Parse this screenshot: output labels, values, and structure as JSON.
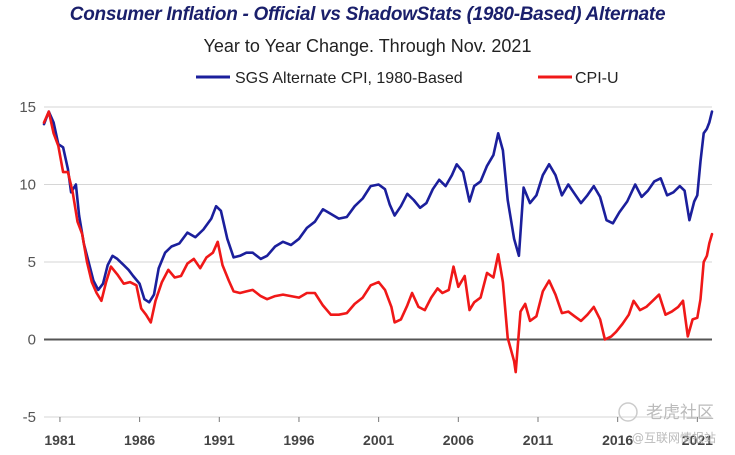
{
  "chart_data": {
    "type": "line",
    "title": "Consumer Inflation - Official vs ShadowStats (1980-Based) Alternate",
    "subtitle": "Year to Year Change. Through Nov. 2021",
    "xlabel": "",
    "ylabel": "",
    "x_ticks": [
      "1981",
      "1986",
      "1991",
      "1996",
      "2001",
      "2006",
      "2011",
      "2016",
      "2021"
    ],
    "y_ticks": [
      "-5",
      "0",
      "5",
      "10",
      "15"
    ],
    "xlim": [
      1980.0,
      2021.92
    ],
    "ylim": [
      -5,
      15
    ],
    "grid": true,
    "legend_position": "top-center",
    "series": [
      {
        "name": "SGS Alternate CPI, 1980-Based",
        "color": "#1b1f9c",
        "points": [
          [
            1980.0,
            13.9
          ],
          [
            1980.3,
            14.7
          ],
          [
            1980.6,
            14.0
          ],
          [
            1980.9,
            12.6
          ],
          [
            1981.2,
            12.4
          ],
          [
            1981.5,
            11.0
          ],
          [
            1981.7,
            9.5
          ],
          [
            1982.0,
            10.0
          ],
          [
            1982.2,
            8.0
          ],
          [
            1982.5,
            6.2
          ],
          [
            1982.8,
            5.0
          ],
          [
            1983.1,
            3.8
          ],
          [
            1983.4,
            3.2
          ],
          [
            1983.7,
            3.6
          ],
          [
            1984.0,
            4.8
          ],
          [
            1984.3,
            5.4
          ],
          [
            1984.6,
            5.2
          ],
          [
            1985.0,
            4.8
          ],
          [
            1985.3,
            4.5
          ],
          [
            1985.6,
            4.1
          ],
          [
            1986.0,
            3.6
          ],
          [
            1986.3,
            2.6
          ],
          [
            1986.6,
            2.4
          ],
          [
            1986.9,
            2.9
          ],
          [
            1987.2,
            4.6
          ],
          [
            1987.6,
            5.6
          ],
          [
            1988.0,
            6.0
          ],
          [
            1988.5,
            6.2
          ],
          [
            1989.0,
            6.9
          ],
          [
            1989.5,
            6.6
          ],
          [
            1990.0,
            7.1
          ],
          [
            1990.5,
            7.8
          ],
          [
            1990.8,
            8.6
          ],
          [
            1991.1,
            8.3
          ],
          [
            1991.5,
            6.5
          ],
          [
            1991.9,
            5.3
          ],
          [
            1992.3,
            5.4
          ],
          [
            1992.7,
            5.6
          ],
          [
            1993.1,
            5.6
          ],
          [
            1993.6,
            5.2
          ],
          [
            1994.0,
            5.4
          ],
          [
            1994.5,
            6.0
          ],
          [
            1995.0,
            6.3
          ],
          [
            1995.5,
            6.1
          ],
          [
            1996.0,
            6.5
          ],
          [
            1996.5,
            7.2
          ],
          [
            1997.0,
            7.6
          ],
          [
            1997.5,
            8.4
          ],
          [
            1998.0,
            8.1
          ],
          [
            1998.5,
            7.8
          ],
          [
            1999.0,
            7.9
          ],
          [
            1999.5,
            8.6
          ],
          [
            2000.0,
            9.1
          ],
          [
            2000.5,
            9.9
          ],
          [
            2001.0,
            10.0
          ],
          [
            2001.4,
            9.7
          ],
          [
            2001.7,
            8.7
          ],
          [
            2002.0,
            8.0
          ],
          [
            2002.4,
            8.6
          ],
          [
            2002.8,
            9.4
          ],
          [
            2003.2,
            9.0
          ],
          [
            2003.6,
            8.5
          ],
          [
            2004.0,
            8.8
          ],
          [
            2004.4,
            9.7
          ],
          [
            2004.8,
            10.3
          ],
          [
            2005.2,
            9.9
          ],
          [
            2005.6,
            10.6
          ],
          [
            2005.9,
            11.3
          ],
          [
            2006.3,
            10.8
          ],
          [
            2006.7,
            8.9
          ],
          [
            2007.0,
            9.9
          ],
          [
            2007.4,
            10.2
          ],
          [
            2007.8,
            11.2
          ],
          [
            2008.2,
            11.9
          ],
          [
            2008.5,
            13.3
          ],
          [
            2008.8,
            12.2
          ],
          [
            2009.1,
            9.0
          ],
          [
            2009.5,
            6.5
          ],
          [
            2009.8,
            5.4
          ],
          [
            2010.1,
            9.8
          ],
          [
            2010.5,
            8.8
          ],
          [
            2010.9,
            9.3
          ],
          [
            2011.3,
            10.6
          ],
          [
            2011.7,
            11.3
          ],
          [
            2012.1,
            10.6
          ],
          [
            2012.5,
            9.3
          ],
          [
            2012.9,
            10.0
          ],
          [
            2013.3,
            9.4
          ],
          [
            2013.7,
            8.8
          ],
          [
            2014.1,
            9.3
          ],
          [
            2014.5,
            9.9
          ],
          [
            2014.9,
            9.2
          ],
          [
            2015.3,
            7.7
          ],
          [
            2015.7,
            7.5
          ],
          [
            2016.1,
            8.2
          ],
          [
            2016.6,
            8.9
          ],
          [
            2017.1,
            10.0
          ],
          [
            2017.5,
            9.2
          ],
          [
            2017.9,
            9.6
          ],
          [
            2018.3,
            10.2
          ],
          [
            2018.7,
            10.4
          ],
          [
            2019.1,
            9.3
          ],
          [
            2019.5,
            9.5
          ],
          [
            2019.9,
            9.9
          ],
          [
            2020.2,
            9.6
          ],
          [
            2020.5,
            7.7
          ],
          [
            2020.8,
            8.9
          ],
          [
            2021.0,
            9.3
          ],
          [
            2021.2,
            11.5
          ],
          [
            2021.4,
            13.3
          ],
          [
            2021.6,
            13.6
          ],
          [
            2021.75,
            14.0
          ],
          [
            2021.92,
            14.7
          ]
        ]
      },
      {
        "name": "CPI-U",
        "color": "#f01818",
        "points": [
          [
            1980.0,
            14.0
          ],
          [
            1980.3,
            14.7
          ],
          [
            1980.6,
            13.3
          ],
          [
            1980.9,
            12.5
          ],
          [
            1981.2,
            10.8
          ],
          [
            1981.5,
            10.8
          ],
          [
            1981.8,
            9.5
          ],
          [
            1982.1,
            7.6
          ],
          [
            1982.4,
            6.8
          ],
          [
            1982.7,
            5.0
          ],
          [
            1983.0,
            3.7
          ],
          [
            1983.3,
            3.0
          ],
          [
            1983.6,
            2.5
          ],
          [
            1983.9,
            3.7
          ],
          [
            1984.2,
            4.7
          ],
          [
            1984.6,
            4.2
          ],
          [
            1985.0,
            3.6
          ],
          [
            1985.4,
            3.7
          ],
          [
            1985.8,
            3.5
          ],
          [
            1986.1,
            2.0
          ],
          [
            1986.4,
            1.6
          ],
          [
            1986.7,
            1.1
          ],
          [
            1987.0,
            2.5
          ],
          [
            1987.4,
            3.7
          ],
          [
            1987.8,
            4.5
          ],
          [
            1988.2,
            4.0
          ],
          [
            1988.6,
            4.1
          ],
          [
            1989.0,
            4.9
          ],
          [
            1989.4,
            5.2
          ],
          [
            1989.8,
            4.6
          ],
          [
            1990.2,
            5.3
          ],
          [
            1990.6,
            5.6
          ],
          [
            1990.9,
            6.3
          ],
          [
            1991.2,
            4.8
          ],
          [
            1991.6,
            3.8
          ],
          [
            1991.9,
            3.1
          ],
          [
            1992.3,
            3.0
          ],
          [
            1992.7,
            3.1
          ],
          [
            1993.1,
            3.2
          ],
          [
            1993.6,
            2.8
          ],
          [
            1994.0,
            2.6
          ],
          [
            1994.5,
            2.8
          ],
          [
            1995.0,
            2.9
          ],
          [
            1995.5,
            2.8
          ],
          [
            1996.0,
            2.7
          ],
          [
            1996.5,
            3.0
          ],
          [
            1997.0,
            3.0
          ],
          [
            1997.5,
            2.2
          ],
          [
            1998.0,
            1.6
          ],
          [
            1998.5,
            1.6
          ],
          [
            1999.0,
            1.7
          ],
          [
            1999.5,
            2.3
          ],
          [
            2000.0,
            2.7
          ],
          [
            2000.5,
            3.5
          ],
          [
            2001.0,
            3.7
          ],
          [
            2001.4,
            3.2
          ],
          [
            2001.8,
            2.1
          ],
          [
            2002.0,
            1.1
          ],
          [
            2002.4,
            1.3
          ],
          [
            2002.8,
            2.2
          ],
          [
            2003.1,
            3.0
          ],
          [
            2003.5,
            2.1
          ],
          [
            2003.9,
            1.9
          ],
          [
            2004.3,
            2.7
          ],
          [
            2004.7,
            3.3
          ],
          [
            2005.0,
            3.0
          ],
          [
            2005.4,
            3.2
          ],
          [
            2005.7,
            4.7
          ],
          [
            2006.0,
            3.4
          ],
          [
            2006.4,
            4.1
          ],
          [
            2006.7,
            1.9
          ],
          [
            2007.0,
            2.4
          ],
          [
            2007.4,
            2.7
          ],
          [
            2007.8,
            4.3
          ],
          [
            2008.2,
            4.0
          ],
          [
            2008.5,
            5.5
          ],
          [
            2008.8,
            3.7
          ],
          [
            2009.1,
            0.1
          ],
          [
            2009.5,
            -1.4
          ],
          [
            2009.6,
            -2.1
          ],
          [
            2009.9,
            1.8
          ],
          [
            2010.2,
            2.3
          ],
          [
            2010.5,
            1.2
          ],
          [
            2010.9,
            1.5
          ],
          [
            2011.3,
            3.1
          ],
          [
            2011.7,
            3.8
          ],
          [
            2012.1,
            2.9
          ],
          [
            2012.5,
            1.7
          ],
          [
            2012.9,
            1.8
          ],
          [
            2013.3,
            1.5
          ],
          [
            2013.7,
            1.2
          ],
          [
            2014.1,
            1.6
          ],
          [
            2014.5,
            2.1
          ],
          [
            2014.9,
            1.3
          ],
          [
            2015.2,
            0.0
          ],
          [
            2015.6,
            0.2
          ],
          [
            2015.9,
            0.5
          ],
          [
            2016.3,
            1.0
          ],
          [
            2016.7,
            1.6
          ],
          [
            2017.0,
            2.5
          ],
          [
            2017.4,
            1.9
          ],
          [
            2017.8,
            2.1
          ],
          [
            2018.2,
            2.5
          ],
          [
            2018.6,
            2.9
          ],
          [
            2019.0,
            1.6
          ],
          [
            2019.4,
            1.8
          ],
          [
            2019.8,
            2.1
          ],
          [
            2020.1,
            2.5
          ],
          [
            2020.4,
            0.2
          ],
          [
            2020.7,
            1.3
          ],
          [
            2021.0,
            1.4
          ],
          [
            2021.2,
            2.6
          ],
          [
            2021.4,
            5.0
          ],
          [
            2021.6,
            5.4
          ],
          [
            2021.75,
            6.2
          ],
          [
            2021.92,
            6.8
          ]
        ]
      }
    ]
  },
  "watermark": {
    "line1": "老虎社区",
    "line2": "@互联网情报站"
  }
}
